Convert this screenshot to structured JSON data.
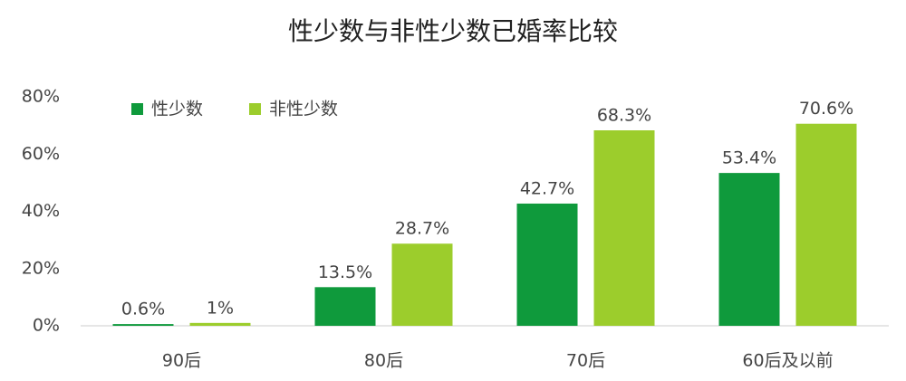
{
  "chart_data": {
    "type": "bar",
    "title": "性少数与非性少数已婚率比较",
    "categories": [
      "90后",
      "80后",
      "70后",
      "60后及以前"
    ],
    "series": [
      {
        "name": "性少数",
        "color": "#0f9a3c",
        "values": [
          0.6,
          13.5,
          42.7,
          53.4
        ],
        "value_labels": [
          "0.6%",
          "13.5%",
          "42.7%",
          "53.4%"
        ]
      },
      {
        "name": "非性少数",
        "color": "#9ccd2c",
        "values": [
          1,
          28.7,
          68.3,
          70.6
        ],
        "value_labels": [
          "1%",
          "28.7%",
          "68.3%",
          "70.6%"
        ]
      }
    ],
    "ylim": [
      0,
      80
    ],
    "yticks": [
      {
        "value": 0,
        "label": "0%"
      },
      {
        "value": 20,
        "label": "20%"
      },
      {
        "value": 40,
        "label": "40%"
      },
      {
        "value": 60,
        "label": "60%"
      },
      {
        "value": 80,
        "label": "80%"
      }
    ],
    "grid": false,
    "legend": "upper left"
  }
}
